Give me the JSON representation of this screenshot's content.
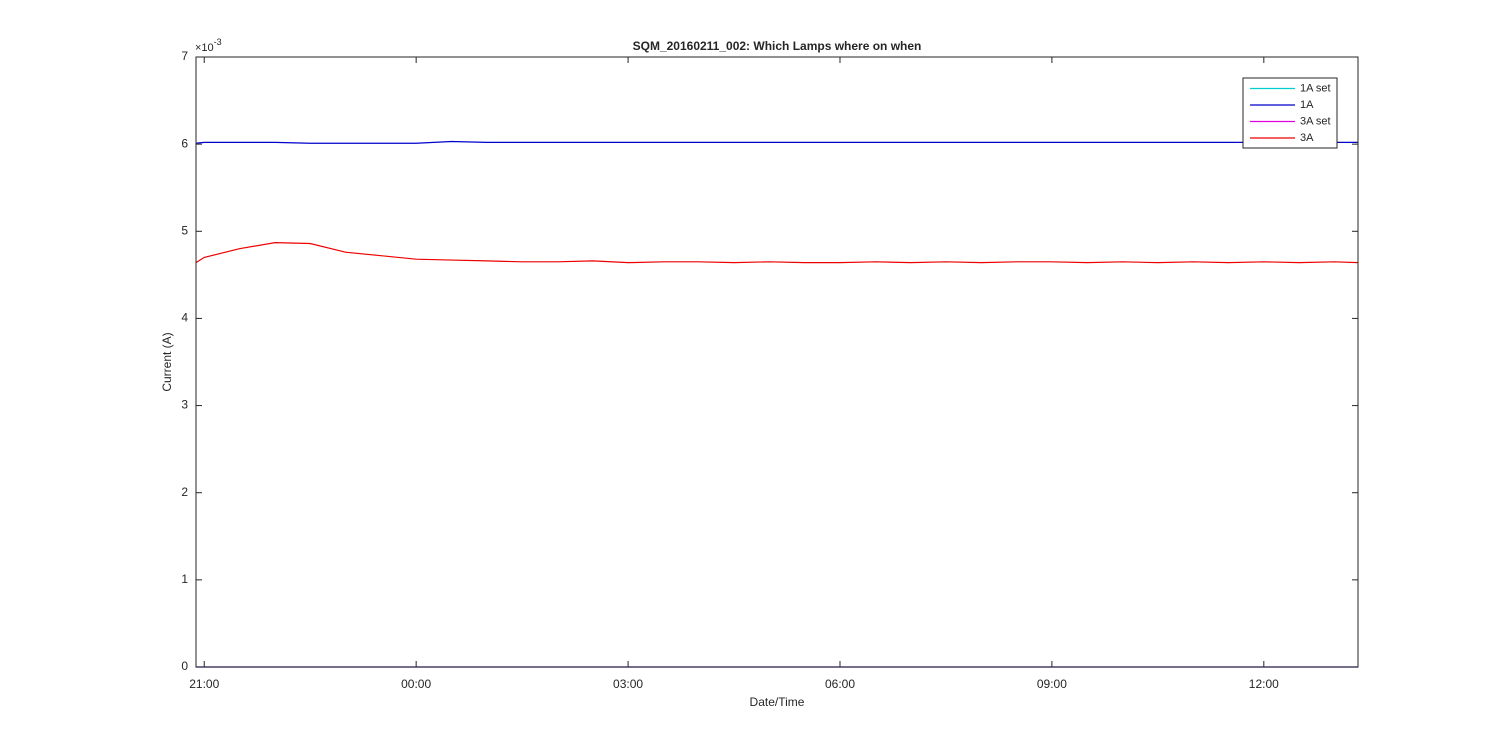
{
  "chart_data": {
    "type": "line",
    "title": "SQM_20160211_002: Which Lamps where on when",
    "xlabel": "Date/Time",
    "ylabel": "Current (A)",
    "y_multiplier": {
      "base": "×10",
      "exponent": "-3"
    },
    "x": [
      "20:53",
      "21:00",
      "21:30",
      "22:00",
      "22:30",
      "23:00",
      "23:30",
      "00:00",
      "00:30",
      "01:00",
      "01:30",
      "02:00",
      "02:30",
      "03:00",
      "03:30",
      "04:00",
      "04:30",
      "05:00",
      "05:30",
      "06:00",
      "06:30",
      "07:00",
      "07:30",
      "08:00",
      "08:30",
      "09:00",
      "09:30",
      "10:00",
      "10:30",
      "11:00",
      "11:30",
      "12:00",
      "12:30",
      "13:00",
      "13:20"
    ],
    "series": [
      {
        "name": "1A set",
        "color": "#00d0d0",
        "values": [
          0,
          0,
          0,
          0,
          0,
          0,
          0,
          0,
          0,
          0,
          0,
          0,
          0,
          0,
          0,
          0,
          0,
          0,
          0,
          0,
          0,
          0,
          0,
          0,
          0,
          0,
          0,
          0,
          0,
          0,
          0,
          0,
          0,
          0,
          0
        ]
      },
      {
        "name": "1A",
        "color": "#0000cc",
        "values": [
          6.01,
          6.02,
          6.02,
          6.02,
          6.01,
          6.01,
          6.01,
          6.01,
          6.03,
          6.02,
          6.02,
          6.02,
          6.02,
          6.02,
          6.02,
          6.02,
          6.02,
          6.02,
          6.02,
          6.02,
          6.02,
          6.02,
          6.02,
          6.02,
          6.02,
          6.02,
          6.02,
          6.02,
          6.02,
          6.02,
          6.02,
          6.02,
          6.02,
          6.02,
          6.02
        ]
      },
      {
        "name": "3A set",
        "color": "#e000e0",
        "values": [
          0,
          0,
          0,
          0,
          0,
          0,
          0,
          0,
          0,
          0,
          0,
          0,
          0,
          0,
          0,
          0,
          0,
          0,
          0,
          0,
          0,
          0,
          0,
          0,
          0,
          0,
          0,
          0,
          0,
          0,
          0,
          0,
          0,
          0,
          0
        ]
      },
      {
        "name": "3A",
        "color": "#ee0000",
        "values": [
          4.64,
          4.7,
          4.8,
          4.87,
          4.86,
          4.76,
          4.72,
          4.68,
          4.67,
          4.66,
          4.65,
          4.65,
          4.66,
          4.64,
          4.65,
          4.65,
          4.64,
          4.65,
          4.64,
          4.64,
          4.65,
          4.64,
          4.65,
          4.64,
          4.65,
          4.65,
          4.64,
          4.65,
          4.64,
          4.65,
          4.64,
          4.65,
          4.64,
          4.65,
          4.64
        ]
      }
    ],
    "xlim": [
      "20:53",
      "13:20"
    ],
    "xticks": [
      "21:00",
      "00:00",
      "03:00",
      "06:00",
      "09:00",
      "12:00"
    ],
    "ylim": [
      0,
      7
    ],
    "yticks": [
      0,
      1,
      2,
      3,
      4,
      5,
      6,
      7
    ],
    "legend": "top-right"
  }
}
